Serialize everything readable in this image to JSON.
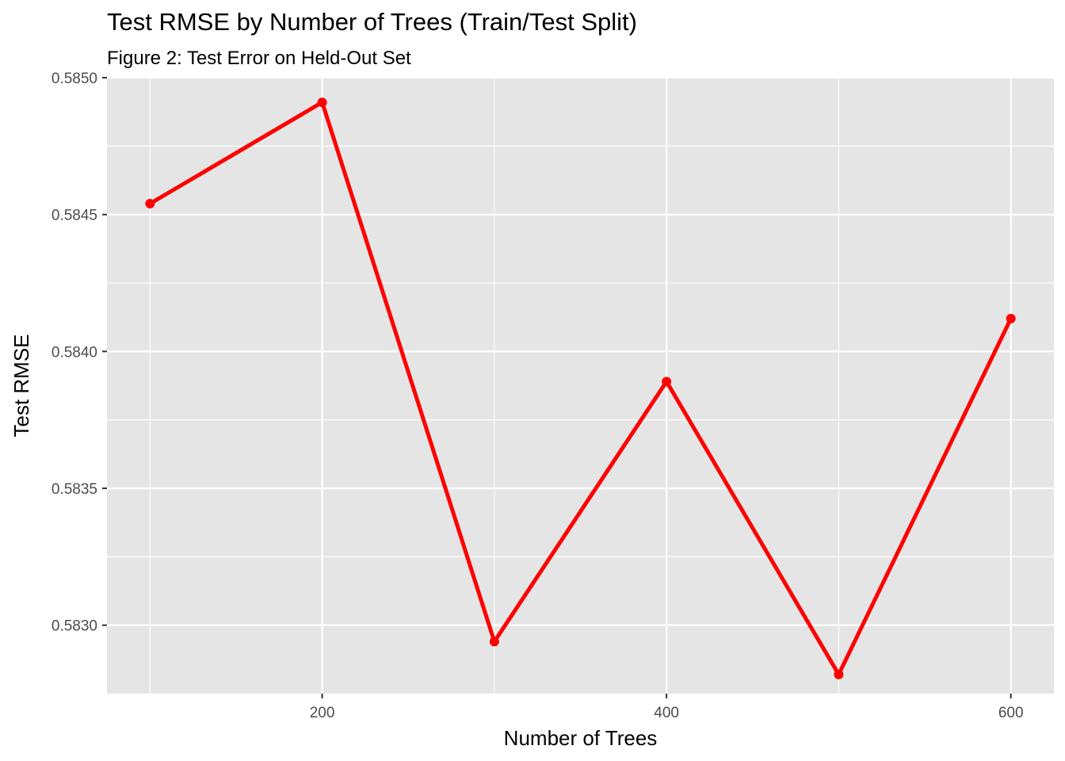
{
  "chart_data": {
    "type": "line",
    "title": "Test RMSE by Number of Trees (Train/Test Split)",
    "subtitle": "Figure 2: Test Error on Held-Out Set",
    "xlabel": "Number of Trees",
    "ylabel": "Test RMSE",
    "x": [
      100,
      200,
      300,
      400,
      500,
      600
    ],
    "series": [
      {
        "name": "Test RMSE",
        "values": [
          0.58454,
          0.58491,
          0.58294,
          0.58389,
          0.58282,
          0.58412
        ]
      }
    ],
    "xlim": [
      75,
      625
    ],
    "ylim": [
      0.58275,
      0.585
    ],
    "x_ticks": [
      200,
      400,
      600
    ],
    "x_tick_labels": [
      "200",
      "400",
      "600"
    ],
    "y_ticks": [
      0.583,
      0.5835,
      0.584,
      0.5845,
      0.585
    ],
    "y_tick_labels": [
      "0.5830",
      "0.5835",
      "0.5840",
      "0.5845",
      "0.5850"
    ],
    "grid": true,
    "legend": "none",
    "colors": {
      "line": "#ff0000",
      "panel": "#e5e5e5",
      "grid": "#ffffff"
    }
  }
}
